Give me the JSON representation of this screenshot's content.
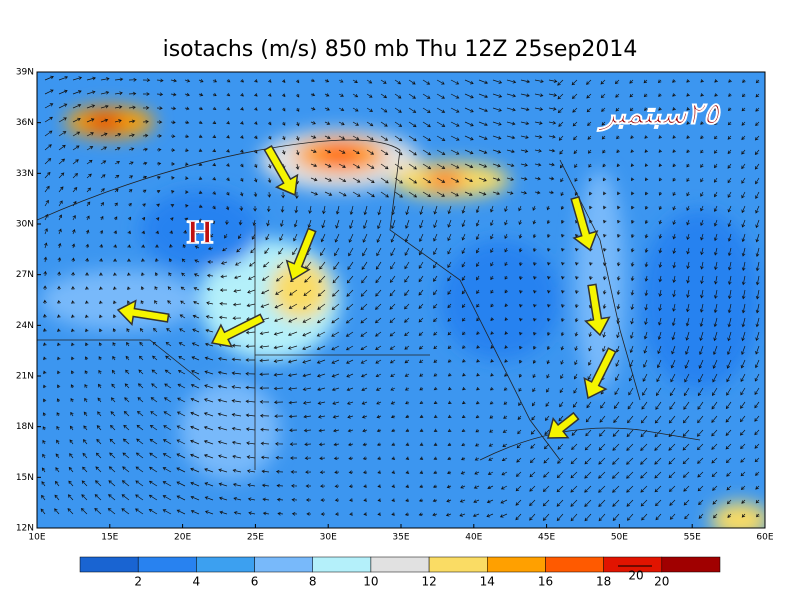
{
  "title": "isotachs (m/s) 850 mb Thu 12Z 25sep2014",
  "lat_labels": [
    "39N",
    "36N",
    "33N",
    "30N",
    "27N",
    "24N",
    "21N",
    "18N",
    "15N",
    "12N"
  ],
  "lon_labels": [
    "10E",
    "15E",
    "20E",
    "25E",
    "30E",
    "35E",
    "40E",
    "45E",
    "50E",
    "55E",
    "60E"
  ],
  "colorbar": {
    "labels": [
      2,
      4,
      6,
      8,
      10,
      12,
      14,
      16,
      18,
      20
    ],
    "colors": [
      "#1964d2",
      "#2882f0",
      "#3ca0f0",
      "#78b9fa",
      "#b4f0fa",
      "#e1e1e1",
      "#fadc64",
      "#ffa000",
      "#ff5a00",
      "#e11400",
      "#a00000"
    ]
  },
  "reference_vector": "20",
  "high_label": "H",
  "annotation": "٢٥سبتمبر"
}
